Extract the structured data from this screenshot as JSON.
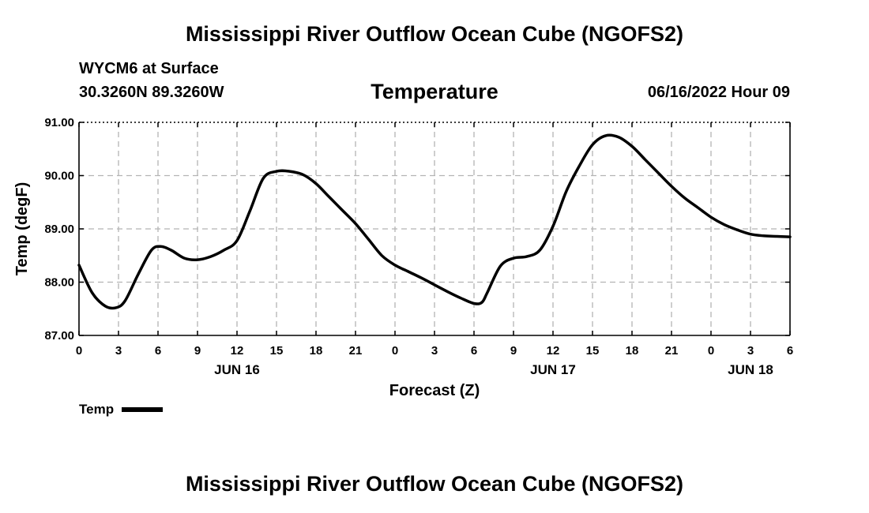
{
  "header": {
    "title": "Mississippi River Outflow Ocean Cube (NGOFS2)",
    "station": "WYCM6 at Surface",
    "coords": "30.3260N  89.3260W",
    "subtitle": "Temperature",
    "datetime": "06/16/2022 Hour 09"
  },
  "footer": {
    "title": "Mississippi River Outflow Ocean Cube (NGOFS2)"
  },
  "legend": {
    "label": "Temp"
  },
  "chart_data": {
    "type": "line",
    "title": "Temperature",
    "xlabel": "Forecast (Z)",
    "ylabel": "Temp (degF)",
    "ylim": [
      87.0,
      91.0
    ],
    "xlim": [
      0,
      54
    ],
    "grid": true,
    "legend_position": "bottom-left",
    "y_ticks": [
      "87.00",
      "88.00",
      "89.00",
      "90.00",
      "91.00"
    ],
    "x_ticks": [
      "0",
      "3",
      "6",
      "9",
      "12",
      "15",
      "18",
      "21",
      "0",
      "3",
      "6",
      "9",
      "12",
      "15",
      "18",
      "21",
      "0",
      "3",
      "6"
    ],
    "day_labels": [
      {
        "label": "JUN 16",
        "hour": 12
      },
      {
        "label": "JUN 17",
        "hour": 36
      },
      {
        "label": "JUN 18",
        "hour": 51
      }
    ],
    "series": [
      {
        "name": "Temp",
        "color": "#000000",
        "x": [
          0,
          1,
          2,
          2.8,
          3.5,
          4.5,
          5.5,
          6.2,
          7,
          8,
          9,
          10,
          11,
          12,
          13,
          14,
          15,
          16,
          17,
          18,
          19,
          20,
          21,
          22,
          23,
          24,
          25,
          26,
          27,
          28,
          29,
          30,
          30.6,
          31,
          32,
          33,
          34,
          35,
          36,
          37,
          38,
          39,
          40,
          41,
          42,
          43,
          44,
          45,
          46,
          47,
          48,
          49,
          50,
          51,
          52,
          53,
          54
        ],
        "y": [
          88.32,
          87.8,
          87.55,
          87.52,
          87.65,
          88.15,
          88.6,
          88.67,
          88.6,
          88.45,
          88.42,
          88.48,
          88.6,
          88.78,
          89.35,
          89.95,
          90.08,
          90.08,
          90.02,
          89.85,
          89.6,
          89.35,
          89.1,
          88.8,
          88.5,
          88.32,
          88.2,
          88.08,
          87.95,
          87.82,
          87.7,
          87.6,
          87.62,
          87.8,
          88.3,
          88.45,
          88.48,
          88.6,
          89.05,
          89.7,
          90.18,
          90.58,
          90.75,
          90.72,
          90.55,
          90.3,
          90.05,
          89.8,
          89.58,
          89.4,
          89.22,
          89.08,
          88.98,
          88.9,
          88.87,
          88.86,
          88.85
        ]
      }
    ]
  }
}
